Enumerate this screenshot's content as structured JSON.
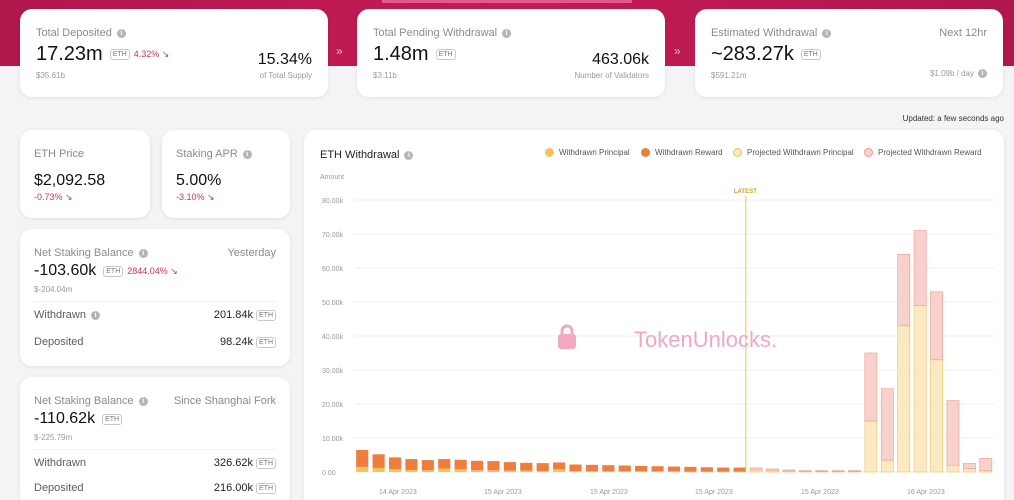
{
  "top": {
    "deposited": {
      "label": "Total Deposited",
      "value": "17.23m",
      "unit": "ETH",
      "change": "4.32% ↘",
      "usd": "$35.61b",
      "percent": "15.34%",
      "percent_label": "of Total Supply"
    },
    "pending": {
      "label": "Total Pending Withdrawal",
      "value": "1.48m",
      "unit": "ETH",
      "usd": "$3.11b",
      "validators": "463.06k",
      "validators_label": "Number of Validators"
    },
    "estimated": {
      "label": "Estimated Withdrawal",
      "value": "~283.27k",
      "unit": "ETH",
      "usd": "$591.21m",
      "period": "Next 12hr",
      "per_day": "$1.09b / day"
    }
  },
  "updated": "Updated: a few seconds ago",
  "eth_price": {
    "label": "ETH Price",
    "value": "$2,092.58",
    "change": "-0.73% ↘"
  },
  "staking_apr": {
    "label": "Staking APR",
    "value": "5.00%",
    "change": "-3.10% ↘"
  },
  "balance_yesterday": {
    "label": "Net Staking Balance",
    "period": "Yesterday",
    "value": "-103.60k",
    "unit": "ETH",
    "change": "2844.04% ↘",
    "usd": "$-204.04m",
    "withdrawn_label": "Withdrawn",
    "withdrawn": "201.84k",
    "deposited_label": "Deposited",
    "deposited": "98.24k",
    "unit_tag": "ETH"
  },
  "balance_shanghai": {
    "label": "Net Staking Balance",
    "period": "Since Shanghai Fork",
    "value": "-110.62k",
    "unit": "ETH",
    "usd": "$-225.79m",
    "withdrawn_label": "Withdrawn",
    "withdrawn": "326.62k",
    "deposited_label": "Deposited",
    "deposited": "216.00k",
    "unit_tag": "ETH"
  },
  "chart": {
    "title": "ETH Withdrawal",
    "ylabel": "Amount",
    "watermark": "TokenUnlocks.",
    "latest_label": "LATEST",
    "legend": [
      "Withdrawn Principal",
      "Withdrawn Reward",
      "Projected Withdrawn Principal",
      "Projected Withdrawn Reward"
    ],
    "colors": {
      "principal": "#f3c35c",
      "reward": "#ee7d3e",
      "proj_principal": "#fbe9c4",
      "proj_reward": "#f7d2cc",
      "latest": "#e9c443"
    }
  },
  "chart_data": {
    "type": "bar",
    "stacked": true,
    "ylim": [
      0,
      80000
    ],
    "yticks": [
      "0.00",
      "10.00k",
      "20.00k",
      "30.00k",
      "40.00k",
      "50.00k",
      "60.00k",
      "70.00k",
      "80.00k"
    ],
    "xticks": [
      "14 Apr 2023",
      "15 Apr 2023",
      "15 Apr 2023",
      "15 Apr 2023",
      "15 Apr 2023",
      "16 Apr 2023"
    ],
    "latest_index": 24,
    "series": [
      {
        "name": "Withdrawn Principal",
        "values": [
          1500,
          1200,
          800,
          600,
          500,
          1000,
          800,
          500,
          500,
          400,
          400,
          300,
          800,
          300,
          200,
          200,
          200,
          200,
          200,
          200,
          100,
          100,
          100,
          100,
          0,
          0,
          0,
          0,
          0,
          0,
          0,
          0,
          0,
          0,
          0,
          0,
          0,
          0,
          0
        ]
      },
      {
        "name": "Withdrawn Reward",
        "values": [
          5000,
          4000,
          3500,
          3200,
          3000,
          2800,
          2800,
          2800,
          2700,
          2500,
          2300,
          2300,
          2000,
          1900,
          1900,
          1800,
          1700,
          1600,
          1500,
          1400,
          1400,
          1300,
          1200,
          1200,
          0,
          0,
          0,
          0,
          0,
          0,
          0,
          0,
          0,
          0,
          0,
          0,
          0,
          0,
          0
        ]
      },
      {
        "name": "Projected Withdrawn Principal",
        "values": [
          0,
          0,
          0,
          0,
          0,
          0,
          0,
          0,
          0,
          0,
          0,
          0,
          0,
          0,
          0,
          0,
          0,
          0,
          0,
          0,
          0,
          0,
          0,
          0,
          600,
          500,
          300,
          200,
          200,
          200,
          200,
          15000,
          3500,
          43000,
          49000,
          33000,
          2000,
          1000,
          500
        ]
      },
      {
        "name": "Projected Withdrawn Reward",
        "values": [
          0,
          0,
          0,
          0,
          0,
          0,
          0,
          0,
          0,
          0,
          0,
          0,
          0,
          0,
          0,
          0,
          0,
          0,
          0,
          0,
          0,
          0,
          0,
          0,
          600,
          400,
          300,
          200,
          200,
          200,
          200,
          20000,
          21000,
          21000,
          22000,
          20000,
          19000,
          1500,
          3500
        ]
      }
    ]
  }
}
